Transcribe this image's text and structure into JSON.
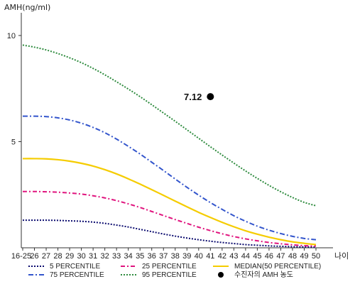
{
  "chart_data": {
    "type": "line",
    "ylabel": "AMH(ng/ml)",
    "xlabel": "나이",
    "ylim": [
      0,
      10.5
    ],
    "yticks": [
      5,
      10
    ],
    "categories": [
      "16-25",
      "26",
      "27",
      "28",
      "29",
      "30",
      "31",
      "32",
      "33",
      "34",
      "35",
      "36",
      "37",
      "38",
      "39",
      "40",
      "41",
      "42",
      "43",
      "44",
      "45",
      "46",
      "47",
      "48",
      "49",
      "50"
    ],
    "series": [
      {
        "name": "5 PERCENTILE",
        "color": "#0a0a6e",
        "dash": "2,2",
        "values": [
          1.3,
          1.3,
          1.3,
          1.29,
          1.27,
          1.25,
          1.21,
          1.15,
          1.07,
          0.98,
          0.87,
          0.76,
          0.65,
          0.55,
          0.46,
          0.38,
          0.31,
          0.25,
          0.2,
          0.15,
          0.12,
          0.09,
          0.07,
          0.05,
          0.04,
          0.03
        ]
      },
      {
        "name": "25 PERCENTILE",
        "color": "#e0147e",
        "dash": "6,3,2,3",
        "values": [
          2.65,
          2.65,
          2.64,
          2.62,
          2.58,
          2.53,
          2.45,
          2.35,
          2.22,
          2.07,
          1.9,
          1.71,
          1.52,
          1.33,
          1.15,
          0.97,
          0.81,
          0.66,
          0.53,
          0.42,
          0.33,
          0.25,
          0.19,
          0.14,
          0.1,
          0.08
        ]
      },
      {
        "name": "MEDIAN(50 PERCENTILE)",
        "color": "#f5cc00",
        "dash": "",
        "values": [
          4.2,
          4.2,
          4.19,
          4.15,
          4.08,
          3.98,
          3.85,
          3.68,
          3.48,
          3.25,
          3.0,
          2.74,
          2.47,
          2.2,
          1.93,
          1.67,
          1.43,
          1.2,
          0.99,
          0.8,
          0.64,
          0.5,
          0.38,
          0.28,
          0.21,
          0.15
        ]
      },
      {
        "name": "75 PERCENTILE",
        "color": "#3355cc",
        "dash": "7,3,2,3",
        "values": [
          6.2,
          6.2,
          6.18,
          6.12,
          6.02,
          5.87,
          5.67,
          5.42,
          5.12,
          4.78,
          4.42,
          4.03,
          3.64,
          3.24,
          2.85,
          2.48,
          2.13,
          1.81,
          1.51,
          1.25,
          1.02,
          0.83,
          0.67,
          0.54,
          0.44,
          0.38
        ]
      },
      {
        "name": "95 PERCENTILE",
        "color": "#2e8b3e",
        "dash": "2,2",
        "values": [
          9.55,
          9.45,
          9.32,
          9.15,
          8.95,
          8.72,
          8.45,
          8.15,
          7.82,
          7.48,
          7.12,
          6.74,
          6.35,
          5.96,
          5.56,
          5.16,
          4.76,
          4.37,
          3.99,
          3.62,
          3.27,
          2.94,
          2.64,
          2.37,
          2.14,
          1.98
        ]
      }
    ],
    "marker": {
      "label": "7.12",
      "x": "41",
      "y": 7.12,
      "legend": "수진자의 AMH 농도"
    },
    "grid": false,
    "legend_position": "bottom"
  }
}
